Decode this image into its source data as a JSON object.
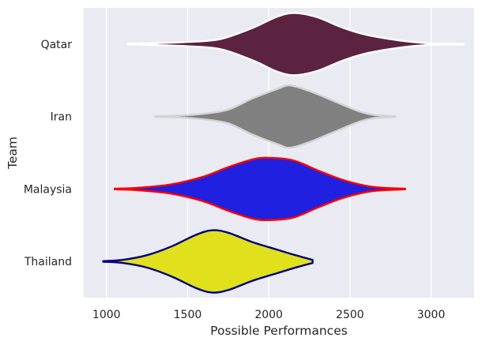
{
  "chart_data": {
    "type": "violin",
    "orientation": "horizontal",
    "title": "",
    "xlabel": "Possible Performances",
    "ylabel": "Team",
    "xlim": [
      860,
      3265
    ],
    "xticks": [
      1000,
      1500,
      2000,
      2500,
      3000
    ],
    "grid": true,
    "legend": "none",
    "background": "#eaeaf2",
    "categories": [
      "Qatar",
      "Iran",
      "Malaysia",
      "Thailand"
    ],
    "series": [
      {
        "category": "Qatar",
        "min": 1130,
        "max": 3200,
        "fill": "#5c2341",
        "edge": "#ffffff",
        "density": [
          [
            1130,
            0.01
          ],
          [
            1300,
            0.03
          ],
          [
            1500,
            0.07
          ],
          [
            1700,
            0.16
          ],
          [
            1900,
            0.52
          ],
          [
            2050,
            0.88
          ],
          [
            2160,
            1.0
          ],
          [
            2300,
            0.86
          ],
          [
            2450,
            0.54
          ],
          [
            2600,
            0.3
          ],
          [
            2800,
            0.12
          ],
          [
            2950,
            0.04
          ],
          [
            3050,
            0.015
          ],
          [
            3200,
            0.01
          ]
        ]
      },
      {
        "category": "Iran",
        "min": 1300,
        "max": 2780,
        "fill": "#808080",
        "edge": "#d3d3d3",
        "density": [
          [
            1300,
            0.01
          ],
          [
            1450,
            0.03
          ],
          [
            1600,
            0.09
          ],
          [
            1750,
            0.22
          ],
          [
            1900,
            0.58
          ],
          [
            2050,
            0.88
          ],
          [
            2130,
            1.0
          ],
          [
            2250,
            0.82
          ],
          [
            2400,
            0.5
          ],
          [
            2550,
            0.18
          ],
          [
            2650,
            0.05
          ],
          [
            2780,
            0.01
          ]
        ]
      },
      {
        "category": "Malaysia",
        "min": 1050,
        "max": 2840,
        "fill": "#2020e0",
        "edge": "#ff0000",
        "density": [
          [
            1050,
            0.01
          ],
          [
            1200,
            0.04
          ],
          [
            1400,
            0.15
          ],
          [
            1600,
            0.4
          ],
          [
            1750,
            0.7
          ],
          [
            1900,
            0.95
          ],
          [
            2000,
            1.0
          ],
          [
            2150,
            0.92
          ],
          [
            2300,
            0.6
          ],
          [
            2450,
            0.3
          ],
          [
            2600,
            0.1
          ],
          [
            2700,
            0.04
          ],
          [
            2840,
            0.01
          ]
        ]
      },
      {
        "category": "Thailand",
        "min": 980,
        "max": 2270,
        "fill": "#e0e01c",
        "edge": "#000080",
        "density": [
          [
            980,
            0.01
          ],
          [
            1100,
            0.05
          ],
          [
            1250,
            0.2
          ],
          [
            1400,
            0.48
          ],
          [
            1550,
            0.85
          ],
          [
            1650,
            1.0
          ],
          [
            1750,
            0.92
          ],
          [
            1900,
            0.62
          ],
          [
            2050,
            0.38
          ],
          [
            2150,
            0.22
          ],
          [
            2270,
            0.05
          ]
        ]
      }
    ]
  }
}
